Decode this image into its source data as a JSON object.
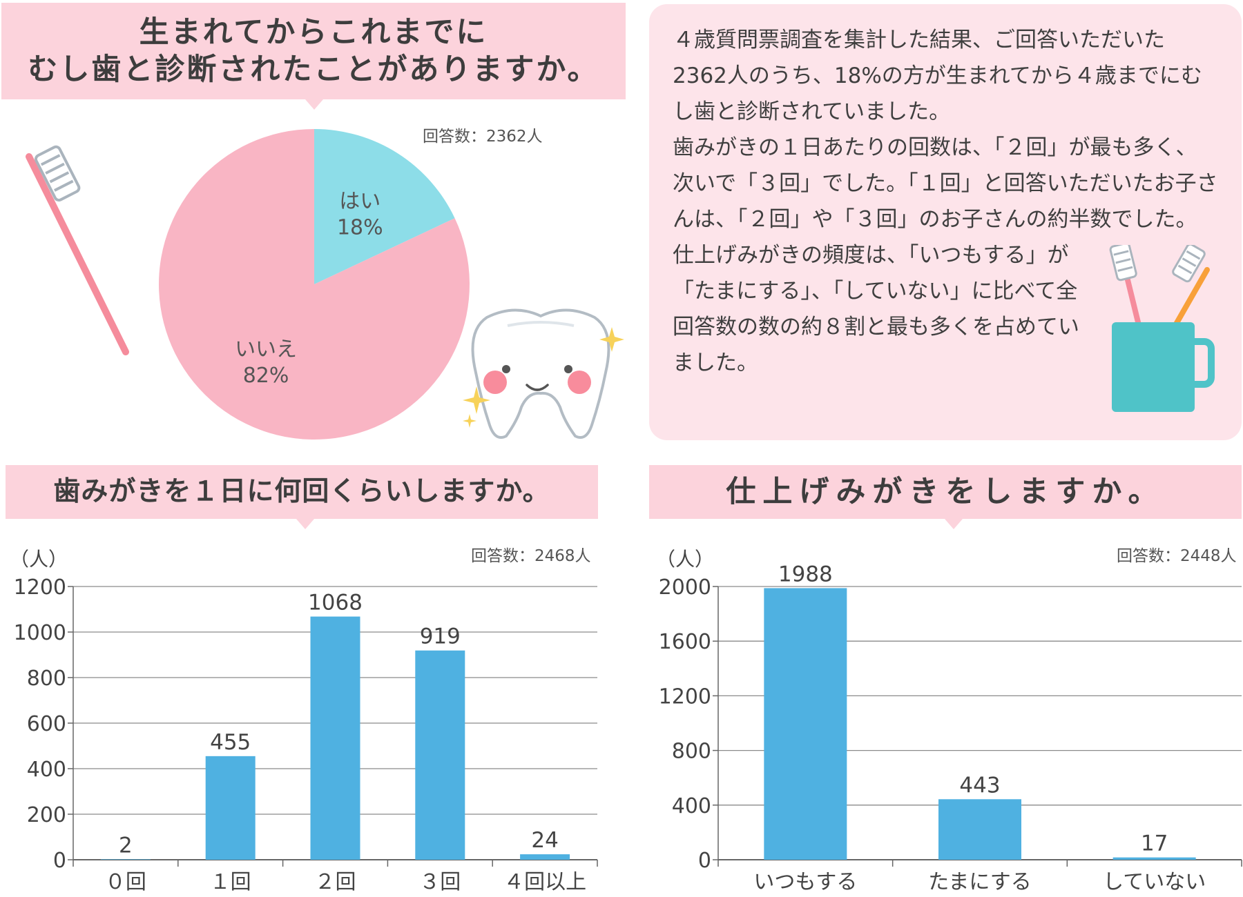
{
  "q1": {
    "title_line1": "生まれてからこれまでに",
    "title_line2": "むし歯と診断されたことがありますか。",
    "count": "回答数：2362人"
  },
  "summary": {
    "para1": "４歳質問票調査を集計した結果、ご回答いただいた2362人のうち、18%の方が生まれてから４歳までにむし歯と診断されていました。",
    "para2": "歯みがきの１日あたりの回数は、「２回」が最も多く、次いで「３回」でした。「１回」と回答いただいたお子さんは、「２回」や「３回」のお子さんの約半数でした。",
    "para3": "仕上げみがきの頻度は、「いつもする」が「たまにする」、「していない」に比べて全回答数の数の約８割と最も多くを占めていました。"
  },
  "q2": {
    "title": "歯みがきを１日に何回くらいしますか。",
    "count": "回答数：2468人"
  },
  "q3": {
    "title": "仕上げみがきをしますか。",
    "count": "回答数：2448人"
  },
  "colors": {
    "pink_banner": "#fcd3dc",
    "pie_no": "#f9b5c4",
    "pie_yes": "#8ddde8",
    "bar": "#4fb1e1",
    "summary_bg": "#fde4ea"
  },
  "icons": [
    "toothbrush-icon",
    "tooth-character-icon",
    "sparkle-icon",
    "toothbrush-cup-icon"
  ],
  "chart_data": [
    {
      "type": "pie",
      "slices": [
        {
          "label": "はい",
          "value": 18,
          "display": "18%"
        },
        {
          "label": "いいえ",
          "value": 82,
          "display": "82%"
        }
      ]
    },
    {
      "type": "bar",
      "categories": [
        "０回",
        "１回",
        "２回",
        "３回",
        "４回以上"
      ],
      "values": [
        2,
        455,
        1068,
        919,
        24
      ],
      "ylabel": "（人）",
      "ylim": [
        0,
        1200
      ],
      "yticks": [
        0,
        200,
        400,
        600,
        800,
        1000,
        1200
      ],
      "grid": true
    },
    {
      "type": "bar",
      "categories": [
        "いつもする",
        "たまにする",
        "していない"
      ],
      "values": [
        1988,
        443,
        17
      ],
      "ylabel": "（人）",
      "ylim": [
        0,
        2000
      ],
      "yticks": [
        0,
        400,
        800,
        1200,
        1600,
        2000
      ],
      "grid": true
    }
  ]
}
